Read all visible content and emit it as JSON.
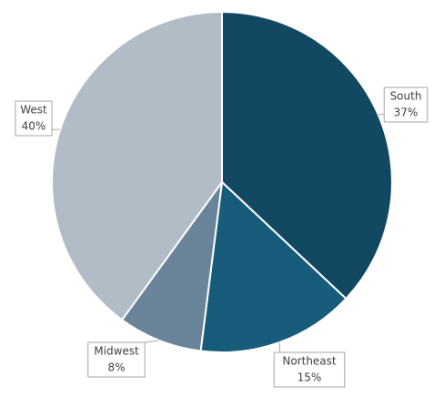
{
  "chart_data": {
    "type": "pie",
    "categories": [
      "South",
      "Northeast",
      "Midwest",
      "West"
    ],
    "values": [
      37,
      15,
      8,
      40
    ],
    "value_labels": [
      "37%",
      "15%",
      "8%",
      "40%"
    ],
    "colors": [
      "#124862",
      "#175c7b",
      "#6a8599",
      "#b2bcc7"
    ]
  }
}
